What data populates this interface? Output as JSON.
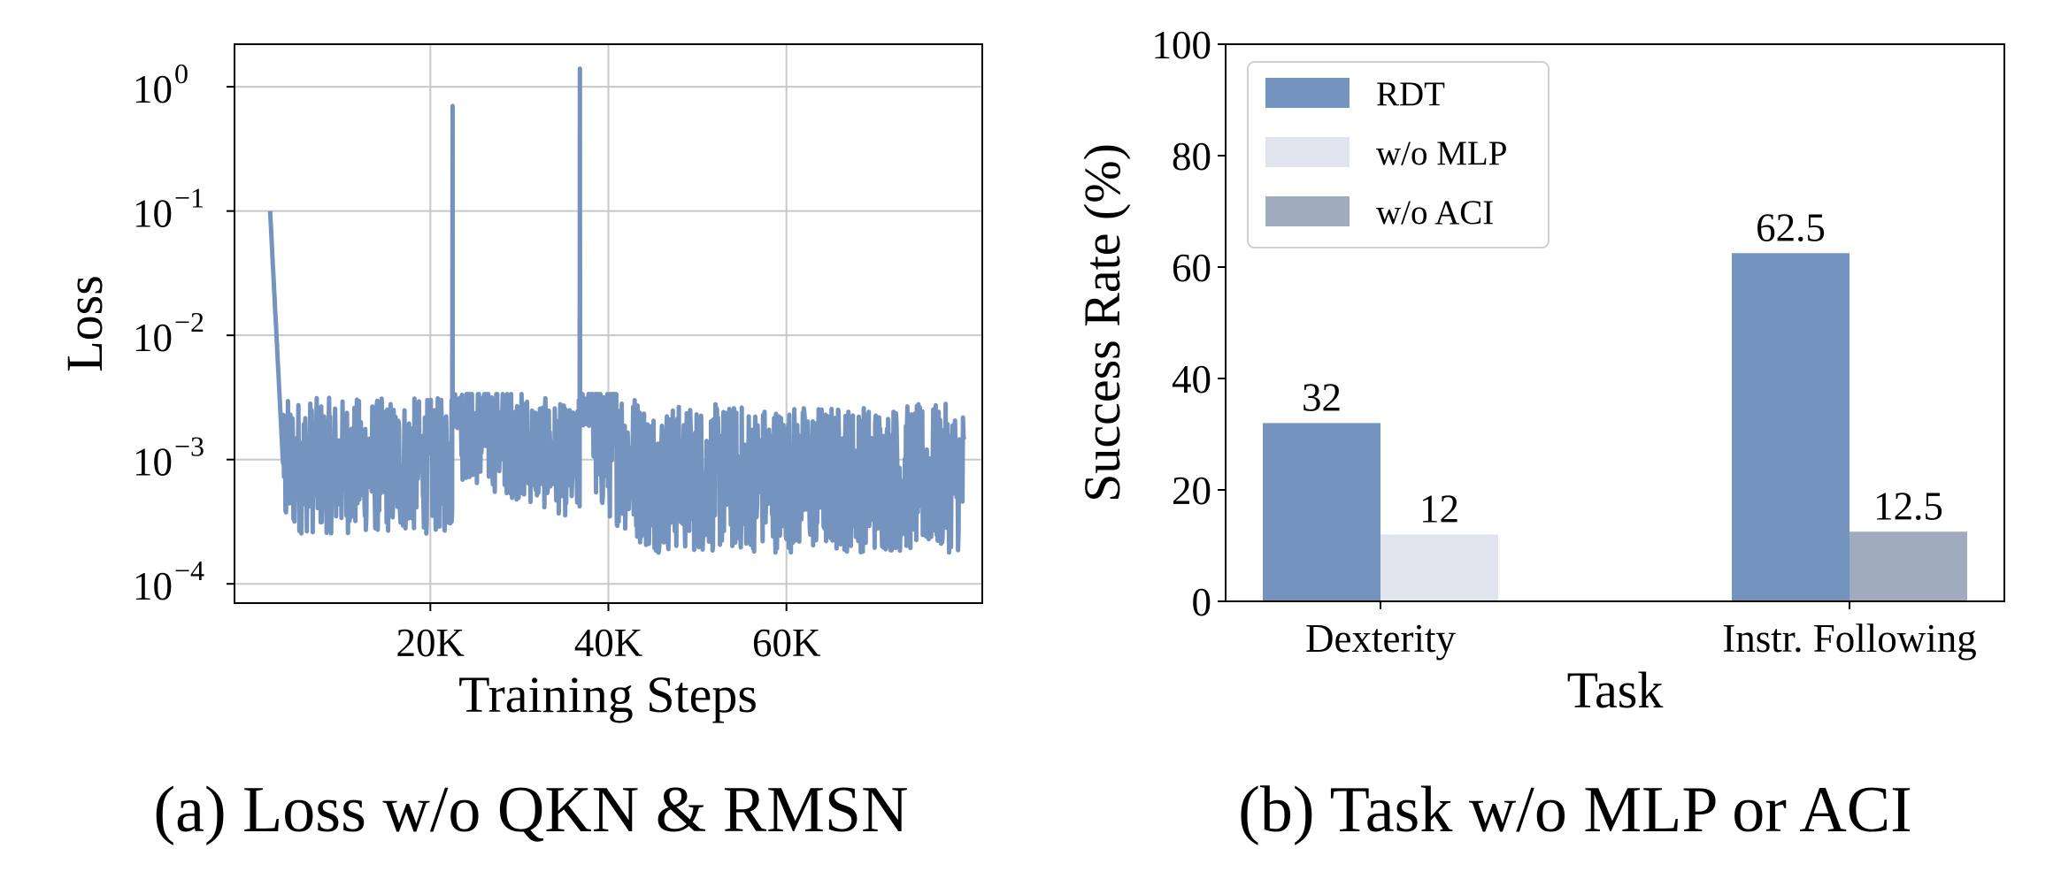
{
  "colors": {
    "rdt": "#7593bf",
    "wo_mlp": "#e0e4ee",
    "wo_aci": "#a0abbd",
    "loss_line": "#7593bf"
  },
  "chart_data": [
    {
      "type": "line",
      "caption": "(a) Loss w/o QKN & RMSN",
      "xlabel": "Training Steps",
      "ylabel": "Loss",
      "yscale": "log",
      "grid": true,
      "xlim": [
        -2000,
        82000
      ],
      "ylim": [
        7e-05,
        2.2
      ],
      "xticks": [
        20000,
        40000,
        60000
      ],
      "xtick_labels": [
        "20K",
        "40K",
        "60K"
      ],
      "yticks": [
        {
          "value": 1,
          "base": "10",
          "exp": "0"
        },
        {
          "value": 0.1,
          "base": "10",
          "exp": "−1"
        },
        {
          "value": 0.01,
          "base": "10",
          "exp": "−2"
        },
        {
          "value": 0.001,
          "base": "10",
          "exp": "−3"
        },
        {
          "value": 0.0001,
          "base": "10",
          "exp": "−4"
        }
      ],
      "features": {
        "x_start": 2000,
        "x_end": 80000,
        "initial_peak": 0.1,
        "spikes": [
          {
            "x": 22500,
            "y": 0.7
          },
          {
            "x": 36800,
            "y": 1.4
          }
        ],
        "band_low": 0.0002,
        "band_high": 0.003
      }
    },
    {
      "type": "bar",
      "caption": "(b) Task w/o MLP or ACI",
      "xlabel": "Task",
      "ylabel": "Success Rate (%)",
      "ylim": [
        0,
        100
      ],
      "yticks": [
        0,
        20,
        40,
        60,
        80,
        100
      ],
      "categories": [
        "Dexterity",
        "Instr. Following"
      ],
      "legend_position": "top-left",
      "series": [
        {
          "name": "RDT",
          "values": [
            32,
            62.5
          ],
          "labels": [
            "32",
            "62.5"
          ]
        },
        {
          "name": "w/o MLP",
          "values": [
            12,
            null
          ],
          "labels": [
            "12",
            ""
          ]
        },
        {
          "name": "w/o ACI",
          "values": [
            null,
            12.5
          ],
          "labels": [
            "",
            "12.5"
          ]
        }
      ]
    }
  ]
}
